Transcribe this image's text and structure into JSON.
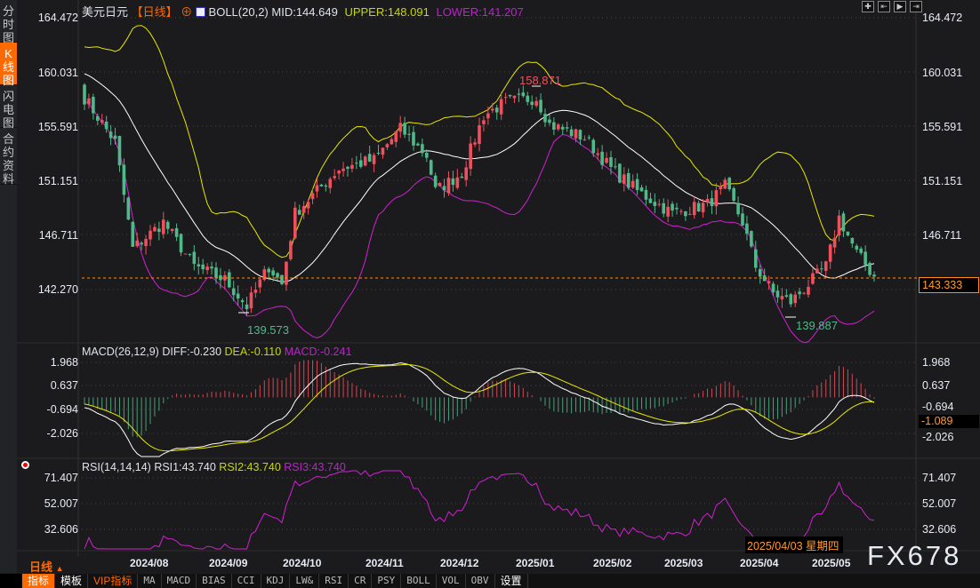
{
  "sidebar": {
    "tabs": [
      {
        "label": "分时图",
        "active": false
      },
      {
        "label": "K线图",
        "active": true
      },
      {
        "label": "闪电图",
        "active": false
      },
      {
        "label": "合约资料",
        "active": false
      }
    ]
  },
  "header": {
    "symbol": "美元日元",
    "period": "【日线】",
    "boll_label": "BOLL(20,2)",
    "mid": "MID:144.649",
    "upper": "UPPER:148.091",
    "lower": "LOWER:141.207"
  },
  "price_axis": [
    "164.472",
    "160.031",
    "155.591",
    "151.151",
    "146.711",
    "142.270"
  ],
  "last_price": "143.333",
  "annotations": {
    "high": "158.871",
    "low1": "139.573",
    "low2": "139.887"
  },
  "macd": {
    "label": "MACD(26,12,9)",
    "diff": "DIFF:-0.230",
    "dea": "DEA:-0.110",
    "macd": "MACD:-0.241",
    "axis": [
      "1.968",
      "0.637",
      "-0.694",
      "-2.026"
    ],
    "current": "-1.089"
  },
  "rsi": {
    "label": "RSI(14,14,14)",
    "rsi1": "RSI1:43.740",
    "rsi2": "RSI2:43.740",
    "rsi3": "RSI3:43.740",
    "axis": [
      "71.407",
      "52.007",
      "32.606"
    ]
  },
  "x_axis": {
    "period_label": "日线",
    "months": [
      "2024/08",
      "2024/09",
      "2024/10",
      "2024/11",
      "2024/12",
      "2025/01",
      "2025/02",
      "2025/03",
      "2025/04",
      "2025/05"
    ],
    "cursor_date": "2025/04/03 星期四"
  },
  "watermark": "FX678",
  "toolbar": [
    "指标",
    "模板",
    "VIP指标",
    "MA",
    "MACD",
    "BIAS",
    "CCI",
    "KDJ",
    "LW&",
    "RSI",
    "CR",
    "PSY",
    "BOLL",
    "VOL",
    "OBV",
    "设置"
  ],
  "colors": {
    "up": "#f0505e",
    "down": "#4fb98a",
    "mid": "#ffffff",
    "upper": "#e8e800",
    "lower": "#d020d0",
    "accent": "#ff6a00"
  },
  "chart_data": {
    "type": "candlestick",
    "price_anchors": [
      [
        0,
        157.94
      ],
      [
        7,
        154.31
      ],
      [
        11,
        145.61
      ],
      [
        18,
        147.78
      ],
      [
        25,
        144.16
      ],
      [
        32,
        143.07
      ],
      [
        37,
        140.89
      ],
      [
        42,
        144.16
      ],
      [
        45,
        142.7
      ],
      [
        48,
        148.51
      ],
      [
        58,
        152.14
      ],
      [
        66,
        152.86
      ],
      [
        72,
        155.4
      ],
      [
        78,
        153.22
      ],
      [
        80,
        150.32
      ],
      [
        86,
        151.77
      ],
      [
        91,
        156.49
      ],
      [
        96,
        157.58
      ],
      [
        103,
        157.94
      ],
      [
        106,
        155.76
      ],
      [
        114,
        154.68
      ],
      [
        120,
        152.14
      ],
      [
        126,
        150.32
      ],
      [
        134,
        148.51
      ],
      [
        142,
        149.24
      ],
      [
        146,
        150.69
      ],
      [
        150,
        147.78
      ],
      [
        153,
        144.16
      ],
      [
        157,
        141.98
      ],
      [
        161,
        141.25
      ],
      [
        165,
        142.7
      ],
      [
        169,
        144.16
      ],
      [
        172,
        148.15
      ],
      [
        176,
        145.24
      ],
      [
        180,
        143.33
      ]
    ]
  }
}
